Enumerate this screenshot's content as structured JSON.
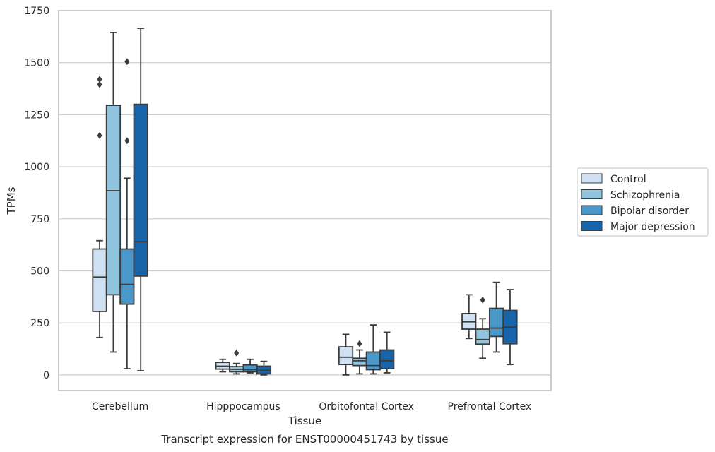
{
  "chart_data": {
    "type": "box",
    "caption": "Transcript expression for ENST00000451743 by tissue",
    "xlabel": "Tissue",
    "ylabel": "TPMs",
    "ylim": [
      -75,
      1750
    ],
    "yticks": [
      0,
      250,
      500,
      750,
      1000,
      1250,
      1500,
      1750
    ],
    "grid": "horizontal",
    "legend_position": "right",
    "categories": [
      "Cerebellum",
      "Hipppocampus",
      "Orbitofontal Cortex",
      "Prefrontal Cortex"
    ],
    "series": [
      {
        "name": "Control",
        "color": "#cfe1f2",
        "boxes": [
          {
            "whisker_low": 180,
            "q1": 305,
            "median": 470,
            "q3": 605,
            "whisker_high": 645,
            "outliers": [
              1150,
              1395,
              1420
            ]
          },
          {
            "whisker_low": 15,
            "q1": 28,
            "median": 42,
            "q3": 60,
            "whisker_high": 75,
            "outliers": []
          },
          {
            "whisker_low": 0,
            "q1": 50,
            "median": 85,
            "q3": 135,
            "whisker_high": 195,
            "outliers": []
          },
          {
            "whisker_low": 175,
            "q1": 220,
            "median": 255,
            "q3": 295,
            "whisker_high": 385,
            "outliers": []
          }
        ]
      },
      {
        "name": "Schizophrenia",
        "color": "#93c4de",
        "boxes": [
          {
            "whisker_low": 110,
            "q1": 385,
            "median": 885,
            "q3": 1295,
            "whisker_high": 1645,
            "outliers": []
          },
          {
            "whisker_low": 5,
            "q1": 15,
            "median": 27,
            "q3": 40,
            "whisker_high": 55,
            "outliers": [
              105
            ]
          },
          {
            "whisker_low": 5,
            "q1": 45,
            "median": 68,
            "q3": 80,
            "whisker_high": 120,
            "outliers": [
              150
            ]
          },
          {
            "whisker_low": 80,
            "q1": 148,
            "median": 170,
            "q3": 220,
            "whisker_high": 270,
            "outliers": [
              360
            ]
          }
        ]
      },
      {
        "name": "Bipolar disorder",
        "color": "#4a98c9",
        "boxes": [
          {
            "whisker_low": 30,
            "q1": 340,
            "median": 435,
            "q3": 605,
            "whisker_high": 945,
            "outliers": [
              1125,
              1505
            ]
          },
          {
            "whisker_low": 10,
            "q1": 15,
            "median": 25,
            "q3": 48,
            "whisker_high": 75,
            "outliers": []
          },
          {
            "whisker_low": 5,
            "q1": 25,
            "median": 45,
            "q3": 110,
            "whisker_high": 240,
            "outliers": []
          },
          {
            "whisker_low": 110,
            "q1": 185,
            "median": 225,
            "q3": 320,
            "whisker_high": 445,
            "outliers": []
          }
        ]
      },
      {
        "name": "Major depression",
        "color": "#1764ab",
        "boxes": [
          {
            "whisker_low": 20,
            "q1": 475,
            "median": 640,
            "q3": 1300,
            "whisker_high": 1665,
            "outliers": []
          },
          {
            "whisker_low": 0,
            "q1": 5,
            "median": 22,
            "q3": 42,
            "whisker_high": 65,
            "outliers": []
          },
          {
            "whisker_low": 10,
            "q1": 30,
            "median": 68,
            "q3": 120,
            "whisker_high": 205,
            "outliers": []
          },
          {
            "whisker_low": 50,
            "q1": 150,
            "median": 230,
            "q3": 310,
            "whisker_high": 410,
            "outliers": []
          }
        ]
      }
    ]
  }
}
